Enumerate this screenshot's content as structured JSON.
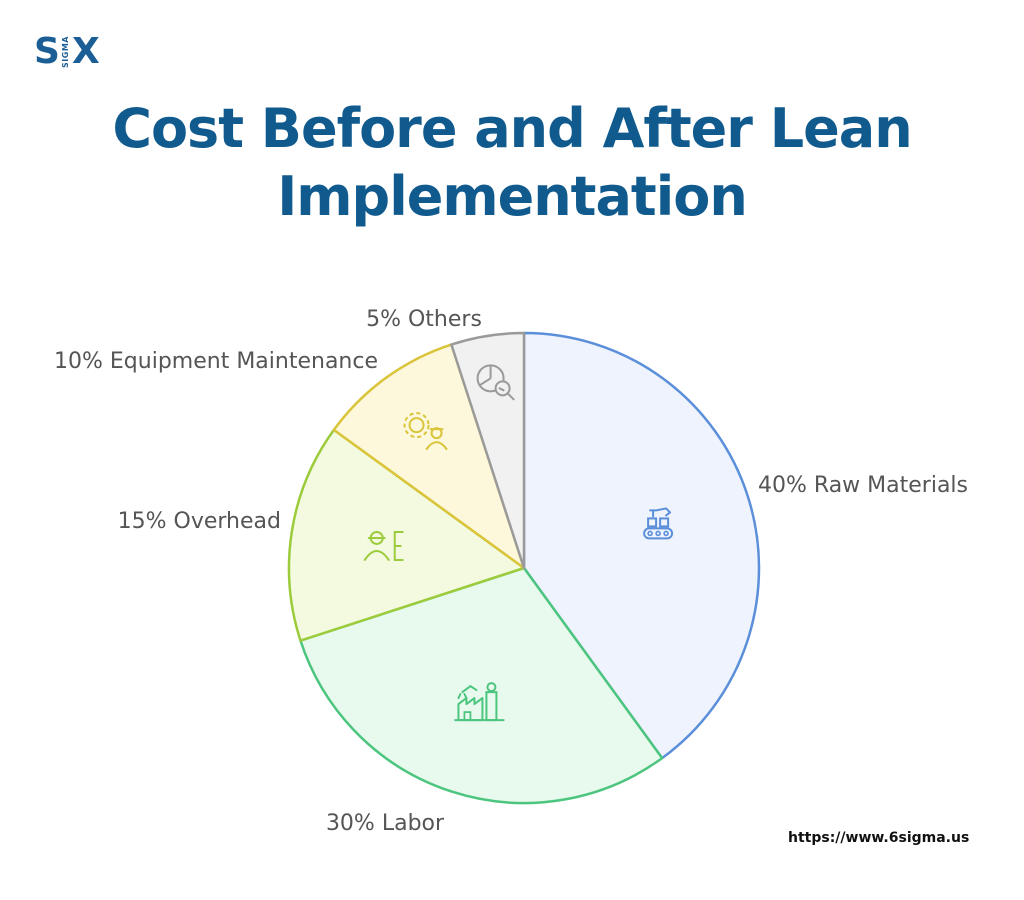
{
  "logo": {
    "left": "S",
    "middle": "SIGMA",
    "right": "X"
  },
  "title": "Cost Before and After Lean Implementation",
  "source_url": "https://www.6sigma.us",
  "chart_data": {
    "type": "pie",
    "title": "Cost Before and After Lean Implementation",
    "start_angle_deg": 0,
    "direction": "clockwise",
    "slices": [
      {
        "label": "40% Raw Materials",
        "value": 40,
        "fill": "#eef3fd",
        "stroke": "#5b8fd9",
        "icon": "robotic-conveyor-icon",
        "label_side": "right"
      },
      {
        "label": "30% Labor",
        "value": 30,
        "fill": "#e8f9ee",
        "stroke": "#4cc57e",
        "icon": "factory-robot-arm-icon",
        "label_side": "bottom"
      },
      {
        "label": "15% Overhead",
        "value": 15,
        "fill": "#f3fadf",
        "stroke": "#9ccb3c",
        "icon": "person-document-icon",
        "label_side": "left"
      },
      {
        "label": "10% Equipment Maintenance",
        "value": 10,
        "fill": "#fdf8dc",
        "stroke": "#d9c43a",
        "icon": "gear-worker-icon",
        "label_side": "left"
      },
      {
        "label": "5% Others",
        "value": 5,
        "fill": "#f1f1f1",
        "stroke": "#9a9a9a",
        "icon": "pie-magnifier-icon",
        "label_side": "top"
      }
    ]
  }
}
